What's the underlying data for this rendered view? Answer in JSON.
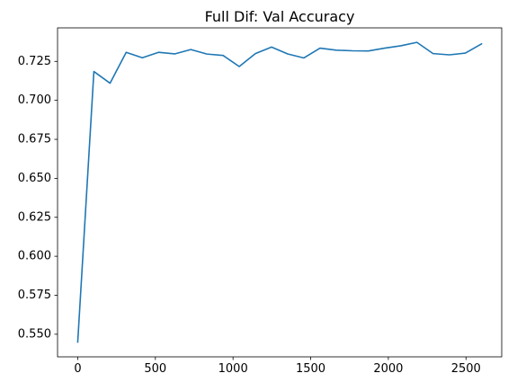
{
  "chart_data": {
    "type": "line",
    "title": "Full Dif: Val Accuracy",
    "xlabel": "",
    "ylabel": "",
    "xlim": [
      -130,
      2730
    ],
    "ylim": [
      0.5355,
      0.7465
    ],
    "xticks": [
      0,
      500,
      1000,
      1500,
      2000,
      2500
    ],
    "xtick_labels": [
      "0",
      "500",
      "1000",
      "1500",
      "2000",
      "2500"
    ],
    "yticks": [
      0.55,
      0.575,
      0.6,
      0.625,
      0.65,
      0.675,
      0.7,
      0.725
    ],
    "ytick_labels": [
      "0.550",
      "0.575",
      "0.600",
      "0.625",
      "0.650",
      "0.675",
      "0.700",
      "0.725"
    ],
    "grid": false,
    "line_color": "#1f77b4",
    "series": [
      {
        "x": [
          0,
          104,
          208,
          312,
          416,
          520,
          624,
          728,
          832,
          936,
          1040,
          1144,
          1248,
          1352,
          1456,
          1560,
          1664,
          1768,
          1872,
          1976,
          2080,
          2184,
          2288,
          2392,
          2496,
          2600
        ],
        "y": [
          0.545,
          0.7185,
          0.711,
          0.7308,
          0.7273,
          0.7308,
          0.7298,
          0.7326,
          0.7297,
          0.7288,
          0.7217,
          0.73,
          0.7342,
          0.7298,
          0.7272,
          0.7335,
          0.7322,
          0.7318,
          0.7317,
          0.7335,
          0.735,
          0.7372,
          0.73,
          0.7292,
          0.7303,
          0.7362
        ]
      }
    ]
  }
}
